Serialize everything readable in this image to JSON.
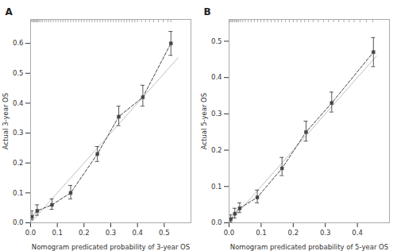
{
  "chart_data": [
    {
      "type": "line",
      "title": "A",
      "x": [
        0.005,
        0.025,
        0.08,
        0.15,
        0.25,
        0.33,
        0.42,
        0.525
      ],
      "values": [
        0.02,
        0.04,
        0.06,
        0.1,
        0.23,
        0.355,
        0.42,
        0.6
      ],
      "yerr_low": [
        0.01,
        0.015,
        0.015,
        0.02,
        0.025,
        0.03,
        0.03,
        0.04
      ],
      "yerr_high": [
        0.02,
        0.02,
        0.02,
        0.025,
        0.025,
        0.035,
        0.04,
        0.04
      ],
      "color": "#444444",
      "marker": "square",
      "line_style": "dashed",
      "reference_line": {
        "x": [
          0.0,
          0.552
        ],
        "y": [
          0.0,
          0.552
        ],
        "color": "#c0c0c0"
      },
      "rug_x": [
        0.004,
        0.008,
        0.012,
        0.016,
        0.02,
        0.024,
        0.028,
        0.032,
        0.038,
        0.044,
        0.052,
        0.06,
        0.068,
        0.076,
        0.085,
        0.094,
        0.103,
        0.112,
        0.121,
        0.13,
        0.14,
        0.15,
        0.16,
        0.17,
        0.18,
        0.19,
        0.2,
        0.21,
        0.22,
        0.23,
        0.24,
        0.25,
        0.26,
        0.27,
        0.28,
        0.29,
        0.3,
        0.31,
        0.32,
        0.33,
        0.34,
        0.35,
        0.36,
        0.37,
        0.38,
        0.39,
        0.4,
        0.415,
        0.43,
        0.445,
        0.46,
        0.478,
        0.496,
        0.514,
        0.525
      ],
      "xlabel": "Nomogram predicated probability of 3-year OS",
      "ylabel": "Actual 3-year OS",
      "xlim": [
        0.0,
        0.6
      ],
      "ylim": [
        0.0,
        0.68
      ],
      "xticks": [
        {
          "value": 0.0,
          "label": "0.0"
        },
        0.1,
        0.2,
        0.3,
        0.4,
        0.5
      ],
      "yticks": [
        {
          "value": 0.0,
          "label": "0.0"
        },
        0.1,
        0.2,
        0.3,
        0.4,
        0.5,
        0.6
      ],
      "grid": false
    },
    {
      "type": "line",
      "title": "B",
      "x": [
        0.005,
        0.018,
        0.033,
        0.088,
        0.165,
        0.24,
        0.32,
        0.45
      ],
      "values": [
        0.01,
        0.025,
        0.04,
        0.07,
        0.15,
        0.25,
        0.33,
        0.47
      ],
      "yerr_low": [
        0.008,
        0.012,
        0.012,
        0.015,
        0.02,
        0.025,
        0.025,
        0.04
      ],
      "yerr_high": [
        0.012,
        0.015,
        0.015,
        0.02,
        0.03,
        0.03,
        0.03,
        0.04
      ],
      "color": "#444444",
      "marker": "square",
      "line_style": "dashed",
      "reference_line": {
        "x": [
          0.0,
          0.46
        ],
        "y": [
          0.0,
          0.46
        ],
        "color": "#c0c0c0"
      },
      "rug_x": [
        0.003,
        0.006,
        0.01,
        0.014,
        0.018,
        0.022,
        0.026,
        0.03,
        0.036,
        0.043,
        0.051,
        0.06,
        0.069,
        0.079,
        0.089,
        0.099,
        0.109,
        0.12,
        0.131,
        0.142,
        0.153,
        0.164,
        0.176,
        0.188,
        0.2,
        0.212,
        0.224,
        0.236,
        0.248,
        0.262,
        0.278,
        0.294,
        0.31,
        0.326,
        0.342,
        0.358,
        0.374,
        0.39,
        0.408,
        0.428,
        0.448
      ],
      "xlabel": "Nomogram predicated probability of 5-year OS",
      "ylabel": "Actual 5-year OS",
      "xlim": [
        0.0,
        0.5
      ],
      "ylim": [
        0.0,
        0.56
      ],
      "xticks": [
        {
          "value": 0.0,
          "label": "0.0"
        },
        0.1,
        0.2,
        0.3,
        0.4
      ],
      "yticks": [
        {
          "value": 0.0,
          "label": "0.0"
        },
        0.1,
        0.2,
        0.3,
        0.4,
        0.5
      ],
      "grid": false
    }
  ]
}
